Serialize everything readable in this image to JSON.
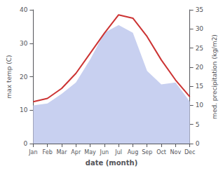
{
  "chart_data": {
    "type": "line",
    "xlabel": "date (month)",
    "ylabel": "max temp (C)",
    "y2label": "med. precipitation (kg/m2)",
    "categories": [
      "Jan",
      "Feb",
      "Mar",
      "Apr",
      "May",
      "Jun",
      "Jul",
      "Aug",
      "Sep",
      "Oct",
      "Nov",
      "Dec"
    ],
    "series": [
      {
        "type": "area",
        "axis": "y2",
        "color": "#c8d0f0",
        "values": [
          10.0,
          10.5,
          13.0,
          16.0,
          22.0,
          29.0,
          31.0,
          29.0,
          19.0,
          15.5,
          16.0,
          11.0
        ]
      },
      {
        "type": "line",
        "color": "#cc3333",
        "values": [
          12.5,
          13.5,
          16.5,
          21.0,
          27.0,
          33.0,
          38.5,
          37.5,
          32.0,
          25.0,
          19.0,
          14.0
        ]
      }
    ],
    "ylim": [
      0,
      40
    ],
    "yticks": [
      0,
      10,
      20,
      30,
      40
    ],
    "y2lim": [
      0,
      35
    ],
    "y2ticks": [
      0,
      5,
      10,
      15,
      20,
      25,
      30,
      35
    ],
    "grid": false
  }
}
